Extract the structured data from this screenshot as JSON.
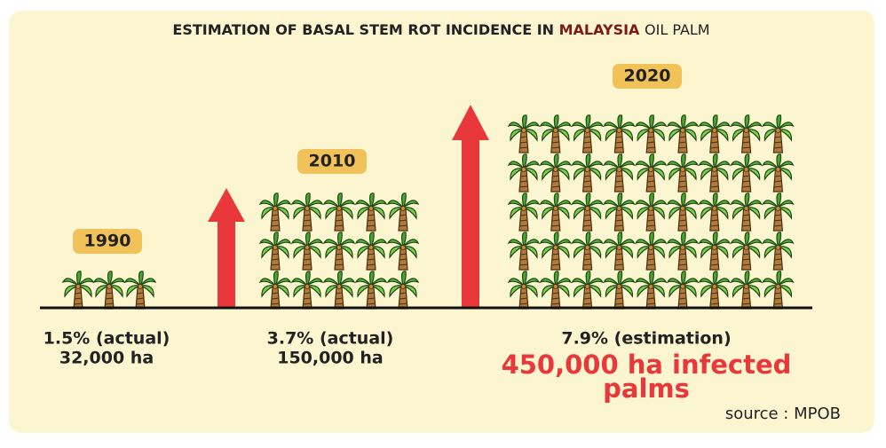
{
  "title": {
    "before": "ESTIMATION OF BASAL STEM ROT INCIDENCE IN",
    "highlight": "MALAYSIA",
    "after": "OIL PALM"
  },
  "periods": [
    {
      "year": "1990",
      "line1": "1.5% (actual)",
      "line2": "32,000 ha"
    },
    {
      "year": "2010",
      "line1": "3.7% (actual)",
      "line2": "150,000 ha"
    },
    {
      "year": "2020",
      "line1": "7.9% (estimation)",
      "highlight1": "450,000 ha infected",
      "highlight2": "palms"
    }
  ],
  "source": "source : MPOB"
}
